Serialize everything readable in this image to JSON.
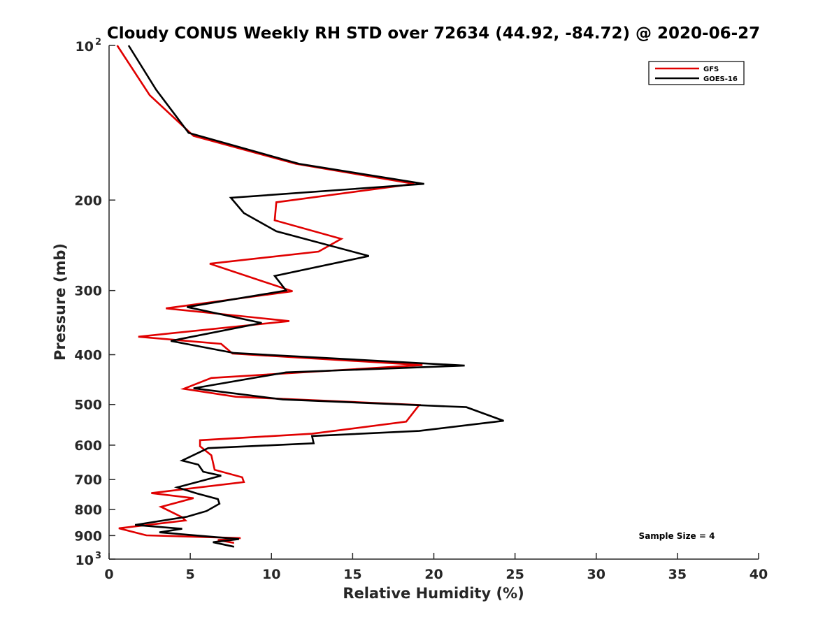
{
  "chart_data": {
    "type": "line",
    "title": "Cloudy CONUS Weekly RH STD over 72634 (44.92, -84.72) @ 2020-06-27",
    "xlabel": "Relative Humidity (%)",
    "ylabel": "Pressure (mb)",
    "xlim": [
      0,
      40
    ],
    "ylim": [
      100,
      1000
    ],
    "y_scale": "log",
    "y_reversed": true,
    "x_ticks": [
      "0",
      "5",
      "10",
      "15",
      "20",
      "25",
      "30",
      "35",
      "40"
    ],
    "y_ticks": [
      {
        "value": 100,
        "base": "10",
        "exp": "2"
      },
      {
        "value": 200,
        "label": "200"
      },
      {
        "value": 300,
        "label": "300"
      },
      {
        "value": 400,
        "label": "400"
      },
      {
        "value": 500,
        "label": "500"
      },
      {
        "value": 600,
        "label": "600"
      },
      {
        "value": 700,
        "label": "700"
      },
      {
        "value": 800,
        "label": "800"
      },
      {
        "value": 900,
        "label": "900"
      },
      {
        "value": 1000,
        "base": "10",
        "exp": "3"
      }
    ],
    "legend_position": "top-right",
    "annotation": "Sample Size = 4",
    "series": [
      {
        "name": "GFS",
        "color": "#e00000",
        "points": [
          [
            0.5,
            100
          ],
          [
            2.5,
            125
          ],
          [
            5.2,
            150
          ],
          [
            11.5,
            170
          ],
          [
            18.8,
            186
          ],
          [
            10.3,
            202
          ],
          [
            10.2,
            219
          ],
          [
            14.3,
            238
          ],
          [
            12.9,
            252
          ],
          [
            6.2,
            266
          ],
          [
            11.3,
            301
          ],
          [
            3.5,
            325
          ],
          [
            11.1,
            344
          ],
          [
            1.8,
            369
          ],
          [
            6.9,
            381
          ],
          [
            7.6,
            398
          ],
          [
            19.3,
            419
          ],
          [
            6.3,
            444
          ],
          [
            4.6,
            466
          ],
          [
            7.8,
            483
          ],
          [
            19.1,
            501
          ],
          [
            18.3,
            540
          ],
          [
            12.5,
            570
          ],
          [
            5.6,
            587
          ],
          [
            5.6,
            603
          ],
          [
            6.3,
            628
          ],
          [
            6.5,
            670
          ],
          [
            8.2,
            693
          ],
          [
            8.3,
            708
          ],
          [
            2.6,
            744
          ],
          [
            5.2,
            761
          ],
          [
            3.2,
            791
          ],
          [
            4.5,
            829
          ],
          [
            4.7,
            841
          ],
          [
            0.6,
            871
          ],
          [
            2.3,
            899
          ],
          [
            8.1,
            910
          ],
          [
            6.7,
            918
          ],
          [
            7.7,
            930
          ]
        ]
      },
      {
        "name": "GOES-16",
        "color": "#000000",
        "points": [
          [
            1.2,
            100
          ],
          [
            2.9,
            122
          ],
          [
            4.9,
            148
          ],
          [
            11.7,
            170
          ],
          [
            19.4,
            186
          ],
          [
            7.5,
            198
          ],
          [
            8.3,
            212
          ],
          [
            10.3,
            230
          ],
          [
            16.0,
            257
          ],
          [
            10.2,
            281
          ],
          [
            10.9,
            300
          ],
          [
            4.8,
            323
          ],
          [
            9.4,
            347
          ],
          [
            3.8,
            376
          ],
          [
            7.7,
            397
          ],
          [
            21.9,
            420
          ],
          [
            10.9,
            433
          ],
          [
            5.2,
            465
          ],
          [
            10.7,
            489
          ],
          [
            22.0,
            506
          ],
          [
            24.3,
            538
          ],
          [
            19.1,
            563
          ],
          [
            12.5,
            576
          ],
          [
            12.6,
            595
          ],
          [
            6.1,
            608
          ],
          [
            4.5,
            643
          ],
          [
            5.5,
            655
          ],
          [
            5.8,
            676
          ],
          [
            6.9,
            688
          ],
          [
            4.2,
            725
          ],
          [
            5.4,
            745
          ],
          [
            6.7,
            764
          ],
          [
            6.8,
            780
          ],
          [
            6.0,
            806
          ],
          [
            4.8,
            827
          ],
          [
            1.6,
            858
          ],
          [
            4.5,
            873
          ],
          [
            3.1,
            887
          ],
          [
            8.0,
            914
          ],
          [
            6.4,
            927
          ],
          [
            7.7,
            946
          ]
        ]
      }
    ]
  }
}
